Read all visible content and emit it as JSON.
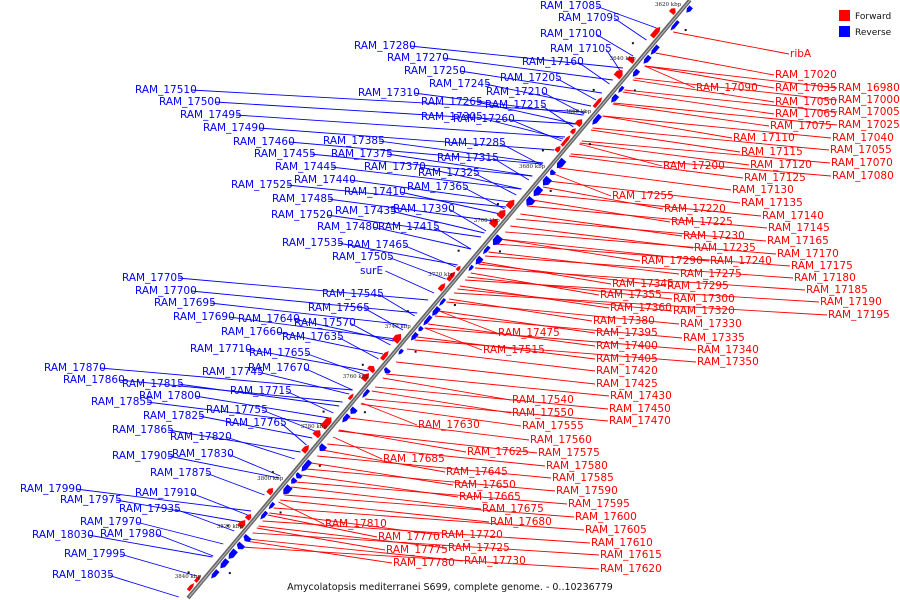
{
  "caption": "Amycolatopsis mediterranei S699, complete genome. - 0..10236779",
  "legend": [
    {
      "label": "Forward",
      "color": "#ff0000"
    },
    {
      "label": "Reverse",
      "color": "#0000ff"
    }
  ],
  "colors": {
    "forward": "#ff0000",
    "reverse": "#0000ff",
    "axis": "#555555"
  },
  "ticks": [
    "3620 kbp",
    "3640 kbp",
    "3660 kbp",
    "3680 kbp",
    "3700 kbp",
    "3720 kbp",
    "3740 kbp",
    "3760 kbp",
    "3780 kbp",
    "3800 kbp",
    "3820 kbp",
    "3840 kbp"
  ],
  "reverse_labels": [
    [
      "RAM_17085",
      540,
      9
    ],
    [
      "RAM_17095",
      558,
      21
    ],
    [
      "RAM_17100",
      540,
      37
    ],
    [
      "RAM_17105",
      550,
      52
    ],
    [
      "RAM_17160",
      522,
      65
    ],
    [
      "RAM_17205",
      500,
      81
    ],
    [
      "RAM_17280",
      354,
      49
    ],
    [
      "RAM_17270",
      387,
      61
    ],
    [
      "RAM_17250",
      404,
      74
    ],
    [
      "RAM_17245",
      429,
      87
    ],
    [
      "RAM_17210",
      486,
      95
    ],
    [
      "RAM_17310",
      358,
      96
    ],
    [
      "RAM_17265",
      421,
      105
    ],
    [
      "RAM_17215",
      485,
      108
    ],
    [
      "RAM_17305",
      421,
      120
    ],
    [
      "RAM_17260",
      453,
      122
    ],
    [
      "RAM_17510",
      135,
      93
    ],
    [
      "RAM_17500",
      159,
      105
    ],
    [
      "RAM_17495",
      180,
      118
    ],
    [
      "RAM_17490",
      203,
      131
    ],
    [
      "RAM_17460",
      233,
      145
    ],
    [
      "RAM_17385",
      323,
      144
    ],
    [
      "RAM_17285",
      444,
      146
    ],
    [
      "RAM_17375",
      331,
      157
    ],
    [
      "RAM_17315",
      437,
      161
    ],
    [
      "RAM_17455",
      254,
      157
    ],
    [
      "RAM_17445",
      275,
      170
    ],
    [
      "RAM_17370",
      364,
      170
    ],
    [
      "RAM_17325",
      418,
      176
    ],
    [
      "RAM_17440",
      294,
      183
    ],
    [
      "RAM_17365",
      407,
      190
    ],
    [
      "RAM_17525",
      231,
      188
    ],
    [
      "RAM_17410",
      344,
      195
    ],
    [
      "RAM_17485",
      272,
      202
    ],
    [
      "RAM_17390",
      393,
      212
    ],
    [
      "RAM_17435",
      335,
      214
    ],
    [
      "RAM_17520",
      271,
      218
    ],
    [
      "RAM_17480",
      317,
      230
    ],
    [
      "RAM_17415",
      378,
      230
    ],
    [
      "RAM_17535",
      282,
      246
    ],
    [
      "RAM_17465",
      347,
      248
    ],
    [
      "RAM_17505",
      332,
      260
    ],
    [
      "surE",
      360,
      274
    ],
    [
      "RAM_17705",
      122,
      281
    ],
    [
      "RAM_17700",
      135,
      294
    ],
    [
      "RAM_17545",
      322,
      297
    ],
    [
      "RAM_17695",
      154,
      306
    ],
    [
      "RAM_17565",
      308,
      311
    ],
    [
      "RAM_17690",
      173,
      320
    ],
    [
      "RAM_17640",
      238,
      322
    ],
    [
      "RAM_17570",
      294,
      326
    ],
    [
      "RAM_17660",
      221,
      335
    ],
    [
      "RAM_17635",
      282,
      340
    ],
    [
      "RAM_17710",
      190,
      352
    ],
    [
      "RAM_17655",
      249,
      356
    ],
    [
      "RAM_17670",
      248,
      371
    ],
    [
      "RAM_17745",
      202,
      375
    ],
    [
      "RAM_17870",
      44,
      371
    ],
    [
      "RAM_17860",
      63,
      383
    ],
    [
      "RAM_17815",
      122,
      387
    ],
    [
      "RAM_17715",
      230,
      394
    ],
    [
      "RAM_17800",
      139,
      399
    ],
    [
      "RAM_17855",
      91,
      405
    ],
    [
      "RAM_17755",
      206,
      413
    ],
    [
      "RAM_17825",
      143,
      419
    ],
    [
      "RAM_17765",
      225,
      426
    ],
    [
      "RAM_17865",
      112,
      433
    ],
    [
      "RAM_17820",
      170,
      440
    ],
    [
      "RAM_17830",
      172,
      457
    ],
    [
      "RAM_17905",
      112,
      459
    ],
    [
      "RAM_17875",
      150,
      476
    ],
    [
      "RAM_17990",
      20,
      492
    ],
    [
      "RAM_17910",
      135,
      496
    ],
    [
      "RAM_17975",
      60,
      503
    ],
    [
      "RAM_17935",
      119,
      512
    ],
    [
      "RAM_17970",
      80,
      525
    ],
    [
      "RAM_18030",
      32,
      538
    ],
    [
      "RAM_17980",
      100,
      537
    ],
    [
      "RAM_17995",
      64,
      557
    ],
    [
      "RAM_18035",
      52,
      578
    ]
  ],
  "forward_labels": [
    [
      "ribA",
      790,
      57
    ],
    [
      "RAM_17020",
      775,
      78
    ],
    [
      "RAM_16980",
      838,
      91
    ],
    [
      "RAM_17035",
      775,
      91
    ],
    [
      "RAM_17000",
      838,
      103
    ],
    [
      "RAM_17090",
      696,
      91
    ],
    [
      "RAM_17050",
      775,
      105
    ],
    [
      "RAM_17005",
      838,
      115
    ],
    [
      "RAM_17065",
      775,
      117
    ],
    [
      "RAM_17025",
      838,
      128
    ],
    [
      "RAM_17075",
      770,
      129
    ],
    [
      "RAM_17110",
      733,
      141
    ],
    [
      "RAM_17040",
      832,
      141
    ],
    [
      "RAM_17115",
      741,
      155
    ],
    [
      "RAM_17055",
      830,
      153
    ],
    [
      "RAM_17070",
      831,
      166
    ],
    [
      "RAM_17120",
      750,
      168
    ],
    [
      "RAM_17200",
      663,
      169
    ],
    [
      "RAM_17080",
      832,
      179
    ],
    [
      "RAM_17125",
      744,
      181
    ],
    [
      "RAM_17130",
      732,
      193
    ],
    [
      "RAM_17255",
      612,
      199
    ],
    [
      "RAM_17135",
      741,
      206
    ],
    [
      "RAM_17220",
      664,
      212
    ],
    [
      "RAM_17140",
      762,
      219
    ],
    [
      "RAM_17225",
      671,
      225
    ],
    [
      "RAM_17145",
      768,
      231
    ],
    [
      "RAM_17230",
      683,
      239
    ],
    [
      "RAM_17165",
      767,
      244
    ],
    [
      "RAM_17235",
      694,
      251
    ],
    [
      "RAM_17170",
      777,
      257
    ],
    [
      "RAM_17290",
      641,
      264
    ],
    [
      "RAM_17240",
      710,
      264
    ],
    [
      "RAM_17175",
      791,
      269
    ],
    [
      "RAM_17275",
      680,
      277
    ],
    [
      "RAM_17180",
      794,
      281
    ],
    [
      "RAM_17345",
      612,
      287
    ],
    [
      "RAM_17295",
      667,
      289
    ],
    [
      "RAM_17185",
      806,
      293
    ],
    [
      "RAM_17355",
      600,
      298
    ],
    [
      "RAM_17300",
      673,
      302
    ],
    [
      "RAM_17190",
      820,
      305
    ],
    [
      "RAM_17360",
      610,
      311
    ],
    [
      "RAM_17320",
      673,
      314
    ],
    [
      "RAM_17195",
      828,
      318
    ],
    [
      "RAM_17380",
      593,
      324
    ],
    [
      "RAM_17330",
      680,
      327
    ],
    [
      "RAM_17475",
      498,
      336
    ],
    [
      "RAM_17395",
      596,
      336
    ],
    [
      "RAM_17335",
      683,
      341
    ],
    [
      "RAM_17515",
      483,
      353
    ],
    [
      "RAM_17400",
      596,
      349
    ],
    [
      "RAM_17340",
      697,
      353
    ],
    [
      "RAM_17405",
      596,
      362
    ],
    [
      "RAM_17350",
      697,
      365
    ],
    [
      "RAM_17420",
      596,
      374
    ],
    [
      "RAM_17425",
      596,
      387
    ],
    [
      "RAM_17430",
      610,
      399
    ],
    [
      "RAM_17540",
      512,
      403
    ],
    [
      "RAM_17450",
      609,
      412
    ],
    [
      "RAM_17550",
      512,
      416
    ],
    [
      "RAM_17630",
      418,
      428
    ],
    [
      "RAM_17555",
      522,
      429
    ],
    [
      "RAM_17470",
      609,
      424
    ],
    [
      "RAM_17560",
      530,
      443
    ],
    [
      "RAM_17625",
      467,
      455
    ],
    [
      "RAM_17575",
      538,
      456
    ],
    [
      "RAM_17685",
      383,
      462
    ],
    [
      "RAM_17645",
      446,
      475
    ],
    [
      "RAM_17580",
      546,
      469
    ],
    [
      "RAM_17650",
      454,
      488
    ],
    [
      "RAM_17585",
      552,
      481
    ],
    [
      "RAM_17665",
      459,
      500
    ],
    [
      "RAM_17590",
      556,
      494
    ],
    [
      "RAM_17675",
      482,
      512
    ],
    [
      "RAM_17595",
      568,
      507
    ],
    [
      "RAM_17680",
      490,
      525
    ],
    [
      "RAM_17600",
      575,
      520
    ],
    [
      "RAM_17810",
      325,
      527
    ],
    [
      "RAM_17605",
      585,
      533
    ],
    [
      "RAM_17770",
      378,
      540
    ],
    [
      "RAM_17720",
      441,
      538
    ],
    [
      "RAM_17610",
      591,
      546
    ],
    [
      "RAM_17775",
      386,
      553
    ],
    [
      "RAM_17725",
      448,
      551
    ],
    [
      "RAM_17615",
      600,
      558
    ],
    [
      "RAM_17780",
      393,
      566
    ],
    [
      "RAM_17730",
      464,
      564
    ],
    [
      "RAM_17620",
      600,
      572
    ]
  ]
}
